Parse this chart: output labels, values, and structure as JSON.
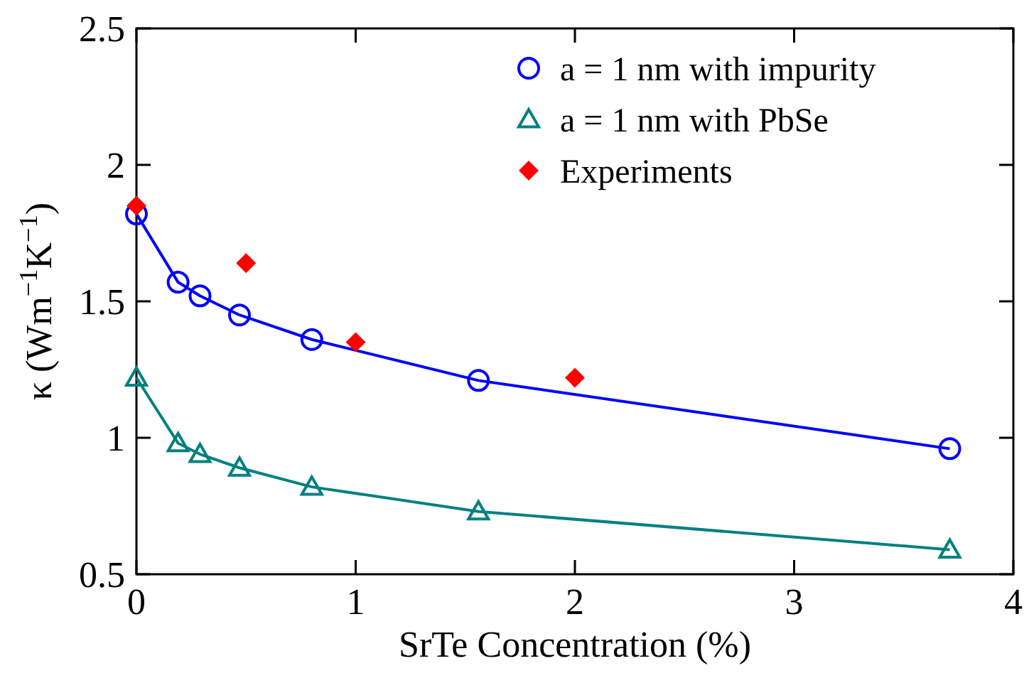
{
  "chart_data": {
    "type": "line",
    "xlabel": "SrTe Concentration (%)",
    "ylabel": "κ (Wm$^{−1}$K$^{−1}$)",
    "xlim": [
      0,
      4
    ],
    "xticks": [
      0,
      1,
      2,
      3,
      4
    ],
    "ylim": [
      0.5,
      2.5
    ],
    "yticks": [
      0.5,
      1,
      1.5,
      2,
      2.5
    ],
    "legend": "top right",
    "grid": false,
    "series": [
      {
        "name": "a = 1 nm with impurity",
        "marker": "circle",
        "color": "#0000ff",
        "x": [
          0,
          0.19,
          0.29,
          0.47,
          0.8,
          1.56,
          3.71
        ],
        "values": [
          1.82,
          1.57,
          1.52,
          1.45,
          1.36,
          1.21,
          0.96
        ]
      },
      {
        "name": "a = 1 nm with PbSe",
        "marker": "triangle",
        "color": "#008080",
        "x": [
          0,
          0.19,
          0.29,
          0.47,
          0.8,
          1.56,
          3.71
        ],
        "values": [
          1.22,
          0.98,
          0.94,
          0.89,
          0.82,
          0.73,
          0.59
        ]
      },
      {
        "name": "Experiments",
        "type": "scatter",
        "marker": "diamond",
        "color": "#ff0000",
        "x": [
          0,
          0.5,
          1,
          2
        ],
        "values": [
          1.85,
          1.64,
          1.35,
          1.22
        ]
      }
    ]
  }
}
